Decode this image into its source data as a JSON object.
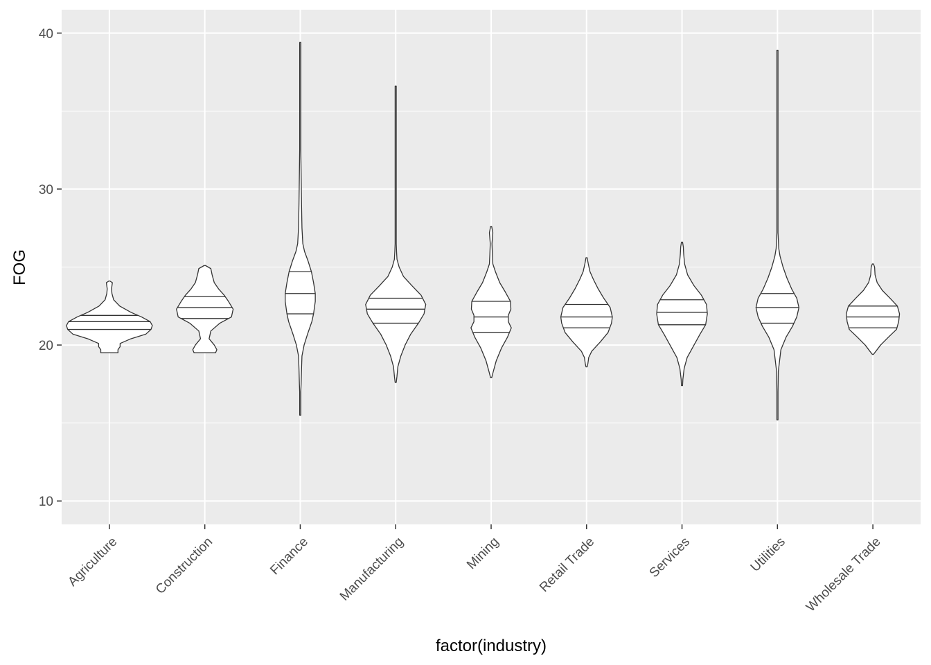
{
  "chart_data": {
    "type": "violin",
    "xlabel": "factor(industry)",
    "ylabel": "FOG",
    "ylim": [
      8.5,
      41.5
    ],
    "yticks": [
      10,
      20,
      30,
      40
    ],
    "grid": true,
    "legend": "none",
    "colors": {
      "panel": "#ebebeb",
      "grid": "#ffffff",
      "outline": "#333333",
      "fill": "#ffffff",
      "tick_text": "#4d4d4d"
    },
    "draw_quantiles": [
      0.25,
      0.5,
      0.75
    ],
    "categories": [
      "Agriculture",
      "Construction",
      "Finance",
      "Manufacturing",
      "Mining",
      "Retail Trade",
      "Services",
      "Utilities",
      "Wholesale Trade"
    ],
    "violins": [
      {
        "category": "Agriculture",
        "min": 19.5,
        "max": 24.1,
        "quantiles": [
          21.0,
          21.5,
          21.9
        ],
        "profile": [
          [
            19.5,
            0.2
          ],
          [
            19.7,
            0.2
          ],
          [
            19.9,
            0.25
          ],
          [
            20.1,
            0.25
          ],
          [
            20.4,
            0.5
          ],
          [
            20.7,
            0.85
          ],
          [
            21.0,
            0.97
          ],
          [
            21.25,
            1.0
          ],
          [
            21.5,
            0.95
          ],
          [
            21.8,
            0.75
          ],
          [
            22.1,
            0.5
          ],
          [
            22.5,
            0.24
          ],
          [
            22.9,
            0.1
          ],
          [
            23.3,
            0.06
          ],
          [
            23.6,
            0.05
          ],
          [
            23.8,
            0.06
          ],
          [
            24.0,
            0.07
          ],
          [
            24.1,
            0.0
          ]
        ]
      },
      {
        "category": "Construction",
        "min": 19.5,
        "max": 25.1,
        "quantiles": [
          21.7,
          22.4,
          23.1
        ],
        "profile": [
          [
            19.5,
            0.25
          ],
          [
            19.7,
            0.28
          ],
          [
            20.0,
            0.22
          ],
          [
            20.4,
            0.1
          ],
          [
            20.9,
            0.14
          ],
          [
            21.4,
            0.35
          ],
          [
            21.8,
            0.62
          ],
          [
            22.3,
            0.66
          ],
          [
            22.8,
            0.55
          ],
          [
            23.2,
            0.45
          ],
          [
            23.6,
            0.32
          ],
          [
            24.0,
            0.22
          ],
          [
            24.5,
            0.17
          ],
          [
            24.9,
            0.14
          ],
          [
            25.1,
            0.0
          ]
        ]
      },
      {
        "category": "Finance",
        "min": 15.5,
        "max": 39.4,
        "quantiles": [
          22.0,
          23.3,
          24.7
        ],
        "profile": [
          [
            15.5,
            0.0
          ],
          [
            16.0,
            0.01
          ],
          [
            17.0,
            0.01
          ],
          [
            17.5,
            0.02
          ],
          [
            18.5,
            0.03
          ],
          [
            19.3,
            0.04
          ],
          [
            20.0,
            0.09
          ],
          [
            20.7,
            0.17
          ],
          [
            21.5,
            0.27
          ],
          [
            22.0,
            0.31
          ],
          [
            22.8,
            0.35
          ],
          [
            23.3,
            0.35
          ],
          [
            24.0,
            0.31
          ],
          [
            24.7,
            0.26
          ],
          [
            25.4,
            0.18
          ],
          [
            26.0,
            0.1
          ],
          [
            26.5,
            0.06
          ],
          [
            27.5,
            0.04
          ],
          [
            29.0,
            0.03
          ],
          [
            31.0,
            0.02
          ],
          [
            32.5,
            0.01
          ],
          [
            33.0,
            0.005
          ],
          [
            39.4,
            0.005
          ]
        ]
      },
      {
        "category": "Manufacturing",
        "min": 17.6,
        "max": 36.6,
        "quantiles": [
          21.4,
          22.3,
          23.0
        ],
        "profile": [
          [
            17.6,
            0.0
          ],
          [
            18.0,
            0.03
          ],
          [
            18.6,
            0.05
          ],
          [
            19.3,
            0.12
          ],
          [
            20.0,
            0.22
          ],
          [
            20.7,
            0.35
          ],
          [
            21.4,
            0.53
          ],
          [
            22.0,
            0.66
          ],
          [
            22.6,
            0.7
          ],
          [
            23.2,
            0.59
          ],
          [
            23.8,
            0.38
          ],
          [
            24.4,
            0.18
          ],
          [
            25.0,
            0.08
          ],
          [
            25.5,
            0.03
          ],
          [
            26.0,
            0.02
          ],
          [
            26.5,
            0.005
          ],
          [
            36.6,
            0.005
          ]
        ]
      },
      {
        "category": "Mining",
        "min": 17.9,
        "max": 27.6,
        "quantiles": [
          20.8,
          21.8,
          22.8
        ],
        "profile": [
          [
            17.9,
            0.0
          ],
          [
            18.3,
            0.05
          ],
          [
            19.0,
            0.12
          ],
          [
            19.8,
            0.24
          ],
          [
            20.5,
            0.38
          ],
          [
            21.1,
            0.47
          ],
          [
            21.5,
            0.4
          ],
          [
            21.9,
            0.4
          ],
          [
            22.3,
            0.46
          ],
          [
            22.8,
            0.45
          ],
          [
            23.4,
            0.33
          ],
          [
            24.0,
            0.2
          ],
          [
            24.7,
            0.1
          ],
          [
            25.2,
            0.04
          ],
          [
            25.8,
            0.03
          ],
          [
            26.5,
            0.02
          ],
          [
            27.2,
            0.04
          ],
          [
            27.6,
            0.0
          ]
        ]
      },
      {
        "category": "Retail Trade",
        "min": 18.6,
        "max": 25.6,
        "quantiles": [
          21.1,
          21.8,
          22.6
        ],
        "profile": [
          [
            18.6,
            0.0
          ],
          [
            18.8,
            0.03
          ],
          [
            19.2,
            0.05
          ],
          [
            19.6,
            0.12
          ],
          [
            20.2,
            0.32
          ],
          [
            20.8,
            0.5
          ],
          [
            21.4,
            0.58
          ],
          [
            21.8,
            0.6
          ],
          [
            22.4,
            0.55
          ],
          [
            23.0,
            0.4
          ],
          [
            23.6,
            0.27
          ],
          [
            24.2,
            0.16
          ],
          [
            24.7,
            0.08
          ],
          [
            25.2,
            0.04
          ],
          [
            25.6,
            0.0
          ]
        ]
      },
      {
        "category": "Services",
        "min": 17.4,
        "max": 26.6,
        "quantiles": [
          21.3,
          22.1,
          22.9
        ],
        "profile": [
          [
            17.4,
            0.0
          ],
          [
            17.8,
            0.02
          ],
          [
            18.5,
            0.05
          ],
          [
            19.2,
            0.12
          ],
          [
            20.0,
            0.28
          ],
          [
            20.7,
            0.42
          ],
          [
            21.3,
            0.55
          ],
          [
            22.0,
            0.59
          ],
          [
            22.6,
            0.57
          ],
          [
            23.2,
            0.45
          ],
          [
            23.8,
            0.28
          ],
          [
            24.5,
            0.13
          ],
          [
            25.2,
            0.06
          ],
          [
            25.8,
            0.04
          ],
          [
            26.3,
            0.03
          ],
          [
            26.6,
            0.0
          ]
        ]
      },
      {
        "category": "Utilities",
        "min": 15.2,
        "max": 38.9,
        "quantiles": [
          21.4,
          22.4,
          23.3
        ],
        "profile": [
          [
            15.2,
            0.0
          ],
          [
            15.5,
            0.01
          ],
          [
            17.0,
            0.01
          ],
          [
            18.3,
            0.02
          ],
          [
            19.0,
            0.05
          ],
          [
            19.7,
            0.08
          ],
          [
            20.5,
            0.2
          ],
          [
            21.2,
            0.35
          ],
          [
            21.8,
            0.45
          ],
          [
            22.4,
            0.5
          ],
          [
            23.0,
            0.45
          ],
          [
            23.6,
            0.33
          ],
          [
            24.3,
            0.22
          ],
          [
            25.0,
            0.13
          ],
          [
            25.7,
            0.06
          ],
          [
            26.2,
            0.03
          ],
          [
            26.8,
            0.02
          ],
          [
            27.2,
            0.005
          ],
          [
            38.9,
            0.005
          ]
        ]
      },
      {
        "category": "Wholesale Trade",
        "min": 19.4,
        "max": 25.2,
        "quantiles": [
          21.1,
          21.8,
          22.5
        ],
        "profile": [
          [
            19.4,
            0.0
          ],
          [
            19.6,
            0.07
          ],
          [
            20.0,
            0.18
          ],
          [
            20.5,
            0.36
          ],
          [
            21.0,
            0.55
          ],
          [
            21.5,
            0.6
          ],
          [
            22.0,
            0.62
          ],
          [
            22.5,
            0.57
          ],
          [
            23.0,
            0.4
          ],
          [
            23.5,
            0.22
          ],
          [
            24.0,
            0.1
          ],
          [
            24.5,
            0.05
          ],
          [
            25.0,
            0.04
          ],
          [
            25.2,
            0.0
          ]
        ]
      }
    ]
  }
}
